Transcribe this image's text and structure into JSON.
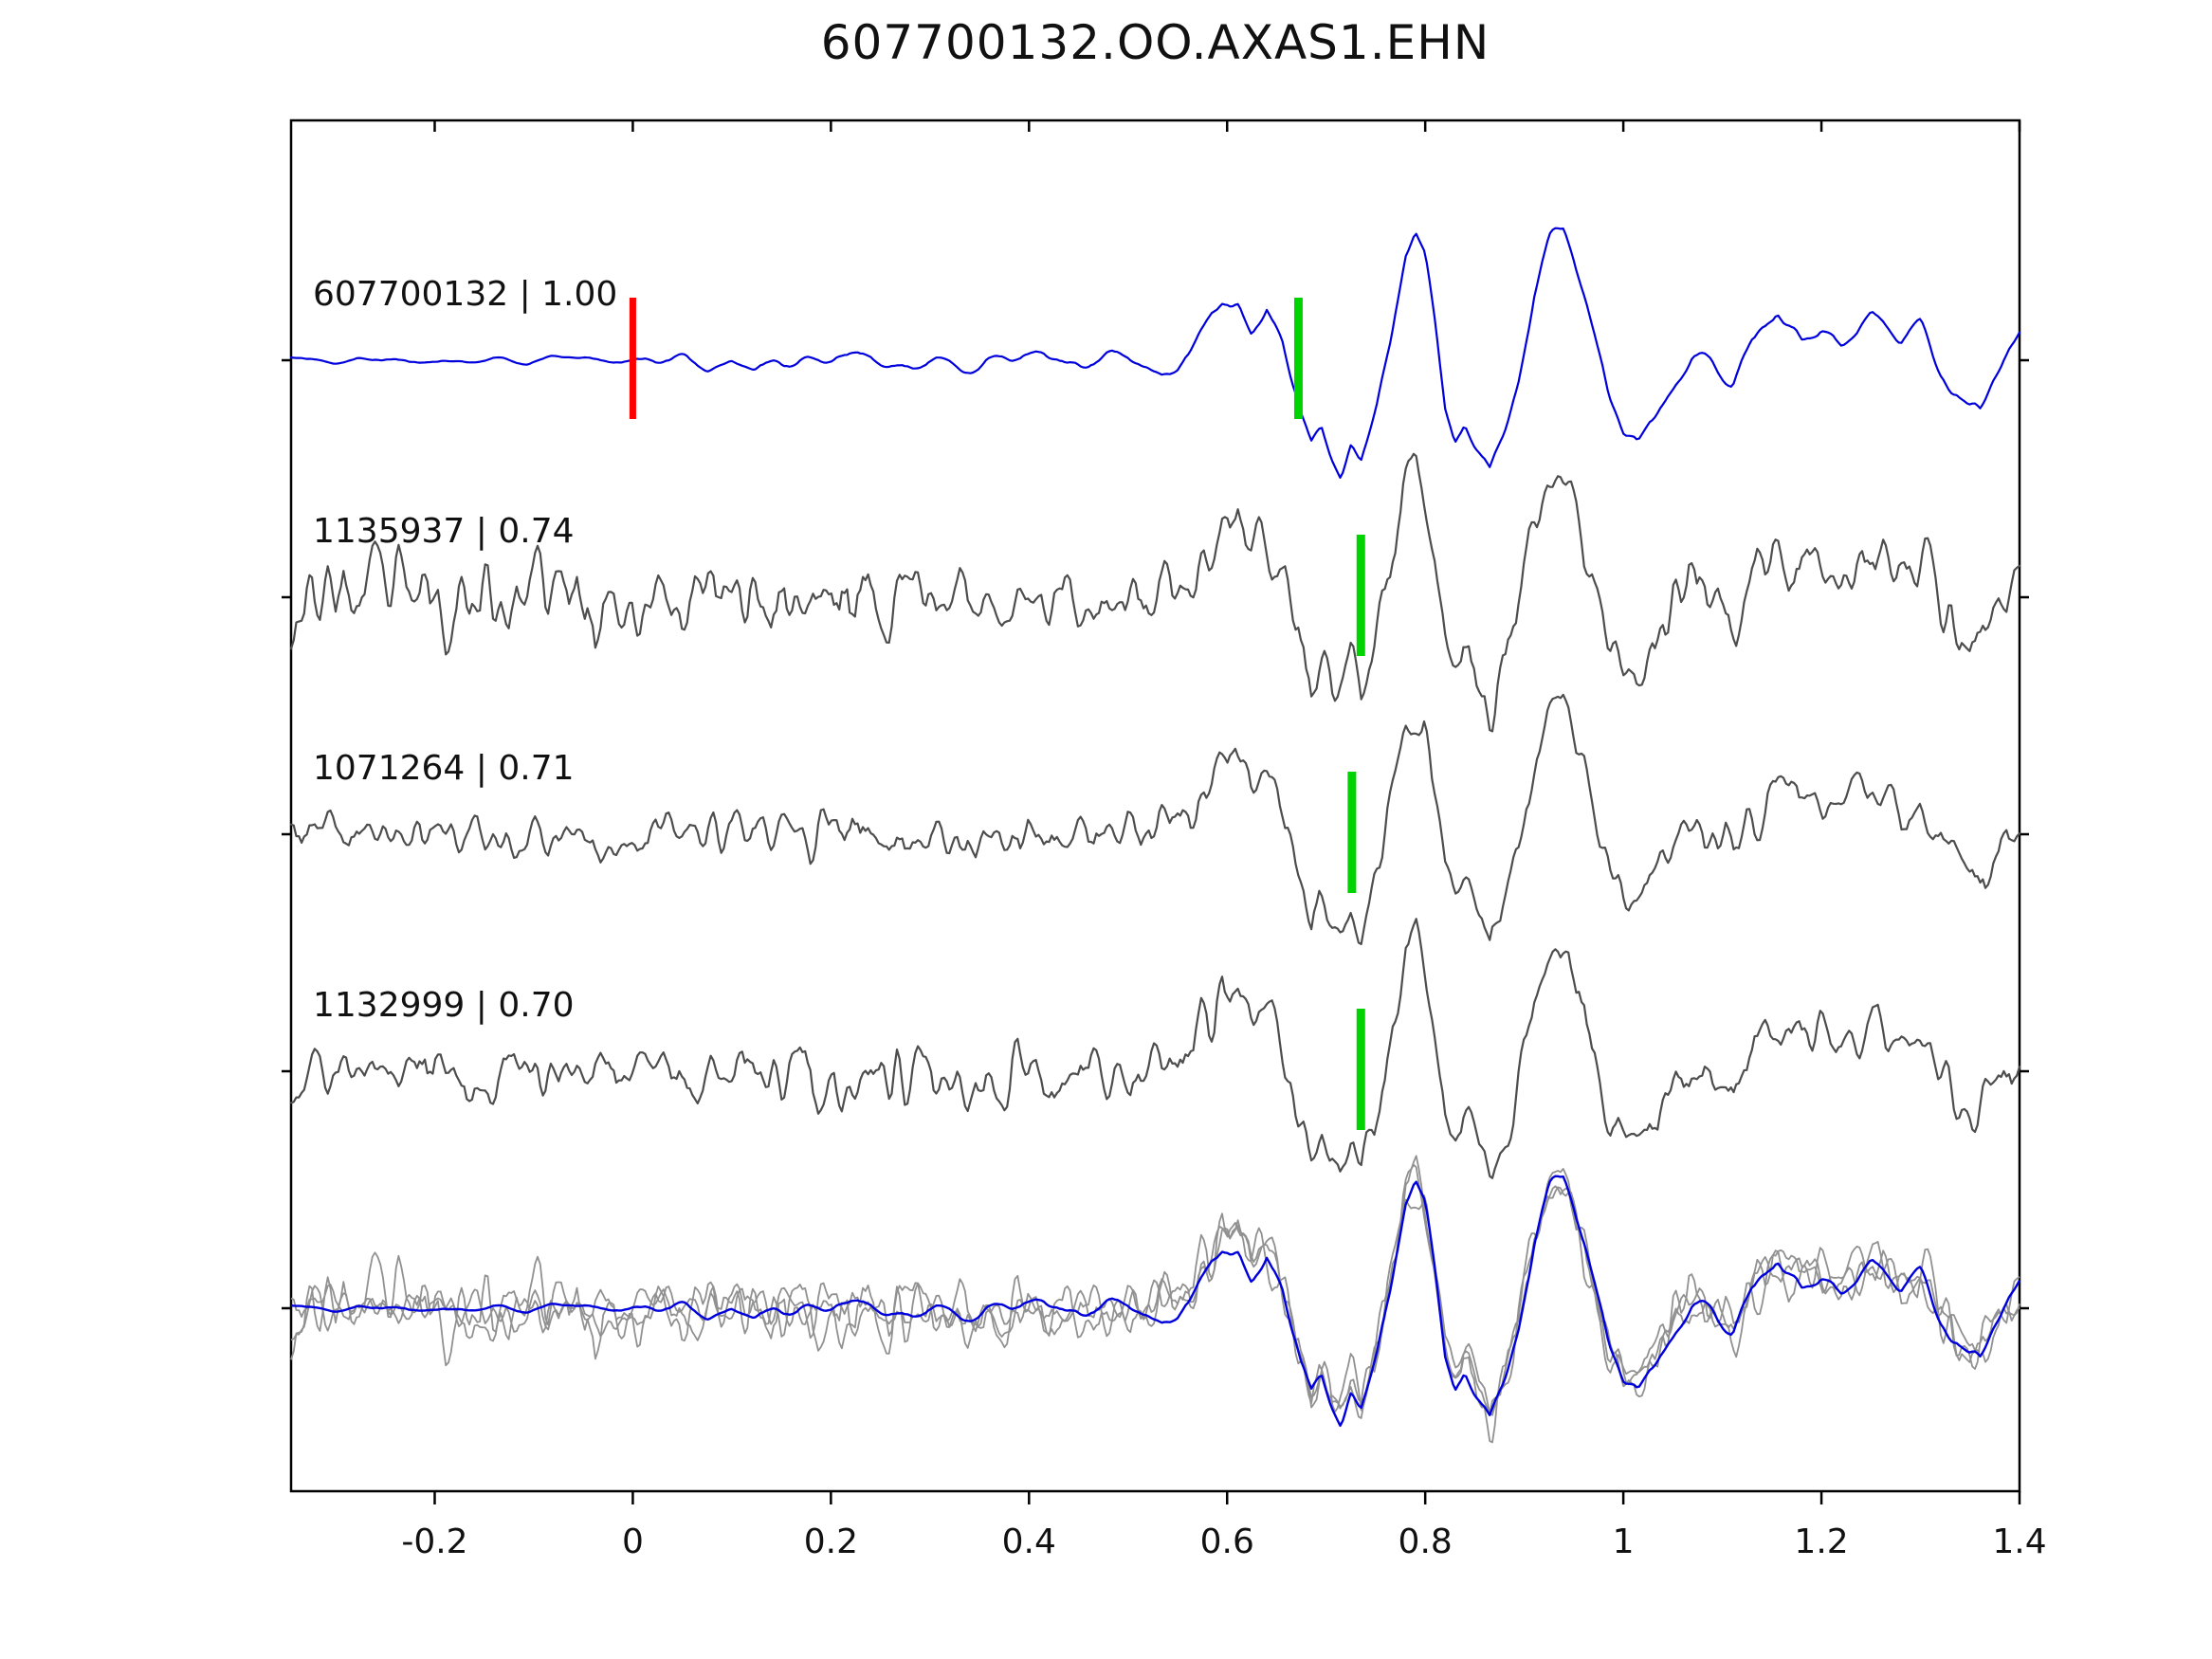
{
  "title": "607700132.OO.AXAS1.EHN",
  "chart_data": {
    "type": "line",
    "title": "607700132.OO.AXAS1.EHN",
    "xlabel": "",
    "ylabel": "",
    "xlim": [
      -0.345,
      1.4
    ],
    "x_ticks": [
      -0.2,
      0,
      0.2,
      0.4,
      0.6,
      0.8,
      1,
      1.2,
      1.4
    ],
    "x_tick_labels": [
      "-0.2",
      "0",
      "0.2",
      "0.4",
      "0.6",
      "0.8",
      "1",
      "1.2",
      "1.4"
    ],
    "grid": false,
    "legend": "none",
    "n_rows": 5,
    "colors": {
      "template": "#0000dd",
      "match": "#4d4d4d",
      "overlay_member": "#919191",
      "pick_green": "#00d400",
      "pick_red": "#ff0000",
      "axis": "#000000",
      "text": "#111111"
    },
    "event_shape": [
      [
        0.55,
        0.0
      ],
      [
        0.565,
        0.1
      ],
      [
        0.58,
        0.28
      ],
      [
        0.595,
        0.5
      ],
      [
        0.61,
        0.55
      ],
      [
        0.625,
        0.35
      ],
      [
        0.64,
        0.5
      ],
      [
        0.655,
        0.25
      ],
      [
        0.665,
        -0.1
      ],
      [
        0.675,
        -0.4
      ],
      [
        0.685,
        -0.62
      ],
      [
        0.695,
        -0.5
      ],
      [
        0.705,
        -0.72
      ],
      [
        0.715,
        -0.85
      ],
      [
        0.725,
        -0.6
      ],
      [
        0.735,
        -0.72
      ],
      [
        0.75,
        -0.35
      ],
      [
        0.765,
        0.15
      ],
      [
        0.78,
        0.85
      ],
      [
        0.79,
        1.0
      ],
      [
        0.8,
        0.8
      ],
      [
        0.81,
        0.3
      ],
      [
        0.82,
        -0.3
      ],
      [
        0.83,
        -0.5
      ],
      [
        0.84,
        -0.35
      ],
      [
        0.85,
        -0.55
      ],
      [
        0.865,
        -0.8
      ],
      [
        0.88,
        -0.55
      ],
      [
        0.895,
        -0.1
      ],
      [
        0.91,
        0.5
      ],
      [
        0.925,
        0.9
      ],
      [
        0.94,
        0.95
      ],
      [
        0.955,
        0.6
      ],
      [
        0.97,
        0.2
      ],
      [
        0.985,
        -0.25
      ],
      [
        1.0,
        -0.5
      ],
      [
        1.015,
        -0.55
      ],
      [
        1.03,
        -0.35
      ],
      [
        1.05,
        -0.1
      ],
      [
        1.07,
        0.12
      ],
      [
        1.09,
        0.02
      ],
      [
        1.11,
        -0.12
      ],
      [
        1.13,
        0.15
      ],
      [
        1.155,
        0.35
      ],
      [
        1.18,
        0.22
      ],
      [
        1.2,
        0.32
      ],
      [
        1.22,
        0.18
      ],
      [
        1.25,
        0.3
      ],
      [
        1.28,
        0.12
      ],
      [
        1.3,
        0.28
      ],
      [
        1.32,
        0.0
      ],
      [
        1.34,
        -0.22
      ],
      [
        1.36,
        -0.3
      ],
      [
        1.38,
        -0.05
      ],
      [
        1.4,
        0.15
      ]
    ],
    "traces": [
      {
        "name": "607700132",
        "label": "607700132 | 1.00",
        "correlation": 1.0,
        "role": "template",
        "row": 0,
        "seed": 11,
        "smooth": 4,
        "event_scale": 1.0,
        "noise_env": [
          [
            -0.345,
            0.07
          ],
          [
            0.0,
            0.07
          ],
          [
            0.05,
            0.12
          ],
          [
            0.15,
            0.16
          ],
          [
            0.25,
            0.12
          ],
          [
            0.35,
            0.15
          ],
          [
            0.45,
            0.13
          ],
          [
            0.55,
            0.18
          ],
          [
            0.62,
            0.2
          ],
          [
            0.7,
            0.12
          ],
          [
            0.85,
            0.12
          ],
          [
            1.05,
            0.18
          ],
          [
            1.2,
            0.22
          ],
          [
            1.4,
            0.2
          ]
        ],
        "picks": [
          {
            "color": "red",
            "x": 0.0
          },
          {
            "color": "green",
            "x": 0.672
          }
        ]
      },
      {
        "name": "1135937",
        "label": "1135937 | 0.74",
        "correlation": 0.74,
        "role": "match",
        "row": 1,
        "seed": 23,
        "smooth": 1,
        "event_scale": 0.95,
        "noise_env": [
          [
            -0.345,
            0.42
          ],
          [
            0.0,
            0.45
          ],
          [
            0.1,
            0.3
          ],
          [
            0.2,
            0.38
          ],
          [
            0.35,
            0.3
          ],
          [
            0.5,
            0.34
          ],
          [
            0.65,
            0.3
          ],
          [
            0.8,
            0.25
          ],
          [
            1.0,
            0.28
          ],
          [
            1.2,
            0.3
          ],
          [
            1.4,
            0.3
          ]
        ],
        "picks": [
          {
            "color": "green",
            "x": 0.735
          }
        ]
      },
      {
        "name": "1071264",
        "label": "1071264 | 0.71",
        "correlation": 0.71,
        "role": "match",
        "row": 2,
        "seed": 37,
        "smooth": 1,
        "event_scale": 0.97,
        "noise_env": [
          [
            -0.345,
            0.22
          ],
          [
            0.1,
            0.25
          ],
          [
            0.3,
            0.28
          ],
          [
            0.5,
            0.26
          ],
          [
            0.7,
            0.22
          ],
          [
            0.9,
            0.22
          ],
          [
            1.1,
            0.26
          ],
          [
            1.4,
            0.25
          ]
        ],
        "picks": [
          {
            "color": "green",
            "x": 0.726
          }
        ]
      },
      {
        "name": "1132999",
        "label": "1132999 | 0.70",
        "correlation": 0.7,
        "role": "match",
        "row": 3,
        "seed": 51,
        "smooth": 1,
        "event_scale": 1.0,
        "noise_env": [
          [
            -0.345,
            0.28
          ],
          [
            0.1,
            0.3
          ],
          [
            0.25,
            0.42
          ],
          [
            0.4,
            0.3
          ],
          [
            0.55,
            0.34
          ],
          [
            0.7,
            0.26
          ],
          [
            0.9,
            0.24
          ],
          [
            1.1,
            0.3
          ],
          [
            1.4,
            0.28
          ]
        ],
        "picks": [
          {
            "color": "green",
            "x": 0.735
          }
        ]
      }
    ],
    "overlay_row": {
      "row": 4,
      "members": [
        "1135937",
        "1071264",
        "1132999",
        "607700132"
      ]
    }
  }
}
